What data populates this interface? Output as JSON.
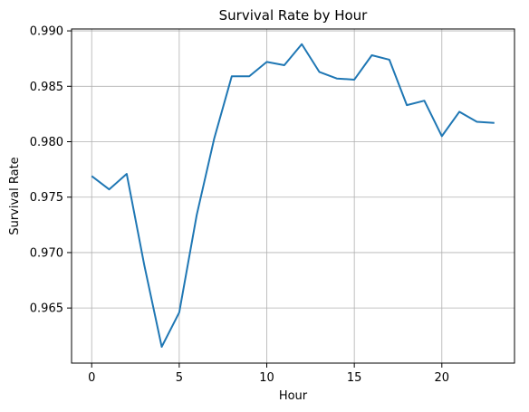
{
  "chart_data": {
    "type": "line",
    "title": "Survival Rate by Hour",
    "xlabel": "Hour",
    "ylabel": "Survival Rate",
    "x": [
      0,
      1,
      2,
      3,
      4,
      5,
      6,
      7,
      8,
      9,
      10,
      11,
      12,
      13,
      14,
      15,
      16,
      17,
      18,
      19,
      20,
      21,
      22,
      23
    ],
    "series": [
      {
        "values": [
          0.9769,
          0.9757,
          0.9771,
          0.9689,
          0.9615,
          0.9646,
          0.9734,
          0.9803,
          0.9859,
          0.9859,
          0.9872,
          0.9869,
          0.9888,
          0.9863,
          0.9857,
          0.9856,
          0.9878,
          0.9874,
          0.9833,
          0.9837,
          0.9805,
          0.9827,
          0.9818,
          0.9817
        ],
        "color": "#1f77b4"
      }
    ],
    "xlim": [
      -1.15,
      24.15
    ],
    "ylim": [
      0.96003,
      0.99017
    ],
    "x_ticks": [
      0,
      5,
      10,
      15,
      20
    ],
    "x_tick_labels": [
      "0",
      "5",
      "10",
      "15",
      "20"
    ],
    "y_ticks": [
      0.965,
      0.97,
      0.975,
      0.98,
      0.985,
      0.99
    ],
    "y_tick_labels": [
      "0.965",
      "0.970",
      "0.975",
      "0.980",
      "0.985",
      "0.990"
    ],
    "grid": true,
    "legend": "none"
  }
}
